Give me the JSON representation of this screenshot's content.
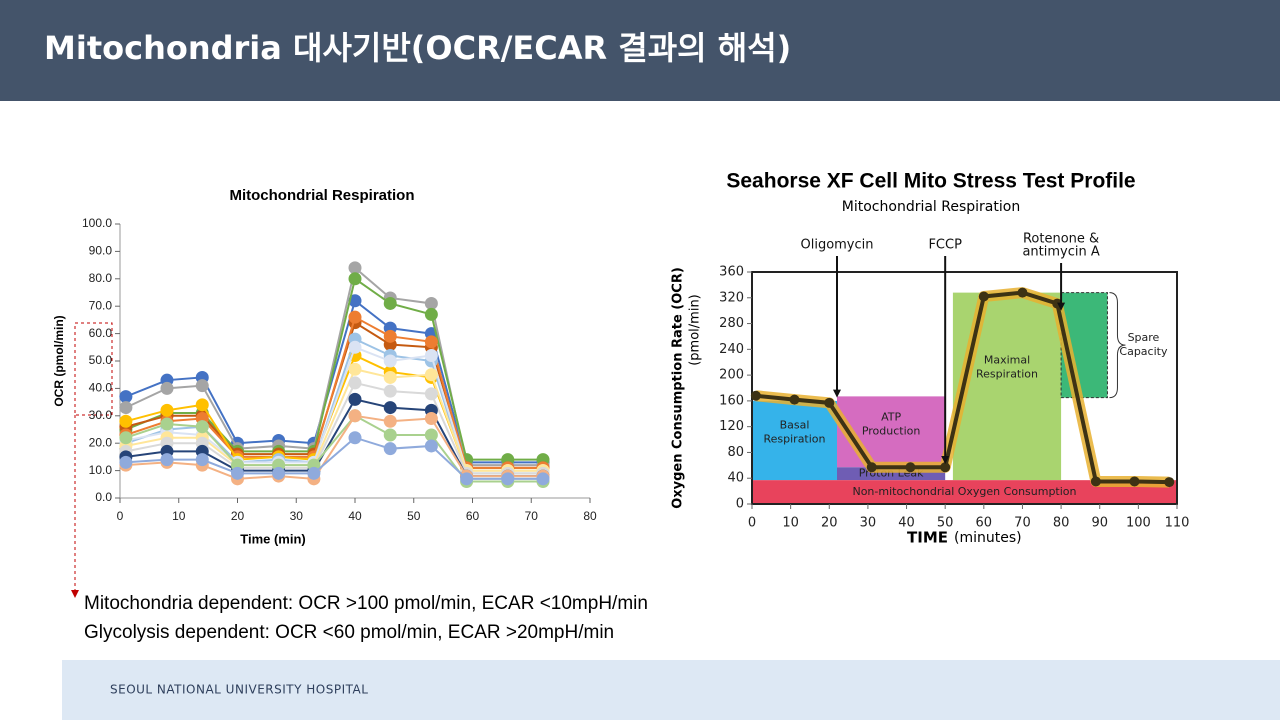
{
  "header": {
    "title": "Mitochondria 대사기반(OCR/ECAR 결과의 해석)"
  },
  "chart_data": [
    {
      "type": "line",
      "title": "Mitochondrial Respiration",
      "x_label": "Time (min)",
      "y_label": "OCR (pmol/min)",
      "x": [
        1,
        8,
        14,
        20,
        27,
        33,
        40,
        46,
        53,
        59,
        66,
        72
      ],
      "xlim": [
        0,
        80
      ],
      "xticks": [
        0,
        10,
        20,
        30,
        40,
        50,
        60,
        70,
        80
      ],
      "ylim": [
        0,
        100
      ],
      "yticks": [
        {
          "value": 0,
          "label": "0.0"
        },
        {
          "value": 10,
          "label": "10.0"
        },
        {
          "value": 20,
          "label": "20.0"
        },
        {
          "value": 30,
          "label": "30.0"
        },
        {
          "value": 40,
          "label": "40.0"
        },
        {
          "value": 50,
          "label": "50.0"
        },
        {
          "value": 60,
          "label": "60.0"
        },
        {
          "value": 70,
          "label": "70.0"
        },
        {
          "value": 80,
          "label": "80.0"
        },
        {
          "value": 90,
          "label": "90.0"
        },
        {
          "value": 100,
          "label": "100.0"
        }
      ],
      "series": [
        {
          "color": "#4472c4",
          "values": [
            37,
            43,
            44,
            20,
            21,
            20,
            72,
            62,
            60,
            13,
            13,
            13
          ]
        },
        {
          "color": "#a5a5a5",
          "values": [
            33,
            40,
            41,
            18,
            19,
            18,
            84,
            73,
            71,
            12,
            12,
            12
          ]
        },
        {
          "color": "#70ad47",
          "values": [
            25,
            31,
            31,
            17,
            17,
            17,
            80,
            71,
            67,
            14,
            14,
            14
          ]
        },
        {
          "color": "#c55a11",
          "values": [
            26,
            30,
            30,
            16,
            16,
            16,
            64,
            56,
            55,
            11,
            11,
            11
          ]
        },
        {
          "color": "#ed7d31",
          "values": [
            23,
            28,
            29,
            15,
            15,
            15,
            66,
            59,
            57,
            11,
            11,
            11
          ]
        },
        {
          "color": "#ffc000",
          "values": [
            28,
            32,
            34,
            14,
            15,
            14,
            52,
            46,
            44,
            10,
            10,
            10
          ]
        },
        {
          "color": "#9dc3e6",
          "values": [
            20,
            25,
            26,
            13,
            14,
            13,
            58,
            52,
            50,
            9,
            9,
            9
          ]
        },
        {
          "color": "#dae3f3",
          "values": [
            21,
            24,
            23,
            13,
            13,
            13,
            55,
            50,
            52,
            10,
            10,
            10
          ]
        },
        {
          "color": "#ffe699",
          "values": [
            19,
            22,
            22,
            12,
            12,
            12,
            47,
            44,
            45,
            10,
            10,
            10
          ]
        },
        {
          "color": "#d9d9d9",
          "values": [
            17,
            20,
            20,
            11,
            11,
            11,
            42,
            39,
            38,
            9,
            9,
            9
          ]
        },
        {
          "color": "#264478",
          "values": [
            15,
            17,
            17,
            10,
            10,
            10,
            36,
            33,
            32,
            8,
            8,
            8
          ]
        },
        {
          "color": "#a9d18e",
          "values": [
            22,
            27,
            26,
            12,
            12,
            12,
            30,
            23,
            23,
            6,
            6,
            6
          ]
        },
        {
          "color": "#f4b183",
          "values": [
            12,
            13,
            12,
            7,
            8,
            7,
            30,
            28,
            29,
            8,
            8,
            8
          ]
        },
        {
          "color": "#8faadc",
          "values": [
            13,
            14,
            14,
            9,
            9,
            9,
            22,
            18,
            19,
            7,
            7,
            7
          ]
        }
      ]
    },
    {
      "type": "line",
      "title": "Seahorse XF Cell Mito Stress Test Profile",
      "subtitle": "Mitochondrial Respiration",
      "x_label": "TIME",
      "x_unit": "(minutes)",
      "y_label": "Oxygen Consumption Rate (OCR)",
      "y_unit": "(pmol/min)",
      "x": [
        1,
        11,
        20,
        31,
        41,
        50,
        60,
        70,
        79,
        89,
        99,
        108
      ],
      "xlim": [
        0,
        110
      ],
      "xticks": [
        0,
        10,
        20,
        30,
        40,
        50,
        60,
        70,
        80,
        90,
        100,
        110
      ],
      "ylim": [
        0,
        360
      ],
      "yticks": [
        0,
        40,
        80,
        120,
        160,
        200,
        240,
        280,
        320,
        360
      ],
      "series": [
        {
          "color": "#3d3214",
          "glow_color": "#e8b030",
          "values": [
            168,
            162,
            157,
            57,
            57,
            57,
            322,
            328,
            311,
            35,
            35,
            34
          ]
        }
      ],
      "regions": [
        {
          "label": [
            "Basal",
            "Respiration"
          ],
          "x": [
            0,
            22
          ],
          "y": [
            37,
            160
          ],
          "color": "#35b3ea"
        },
        {
          "label": [
            "ATP",
            "Production"
          ],
          "x": [
            22,
            50
          ],
          "y": [
            57,
            167
          ],
          "color": "#d56cc0"
        },
        {
          "label": [
            "Proton Leak"
          ],
          "x": [
            22,
            50
          ],
          "y": [
            37,
            57
          ],
          "color": "#6f5db4"
        },
        {
          "label": [
            "Maximal",
            "Respiration"
          ],
          "x": [
            52,
            80
          ],
          "y": [
            37,
            328
          ],
          "color": "#a9d46f"
        },
        {
          "label": [
            "Spare",
            "Capacity"
          ],
          "x": [
            80,
            92
          ],
          "y": [
            165,
            328
          ],
          "color": "#3cb878"
        },
        {
          "label": [
            "Non-mitochondrial Oxygen Consumption"
          ],
          "x": [
            0,
            110
          ],
          "y": [
            0,
            37
          ],
          "color": "#e8435c"
        }
      ],
      "injections": [
        {
          "label": [
            "Oligomycin"
          ],
          "x": 22,
          "y": 165
        },
        {
          "label": [
            "FCCP"
          ],
          "x": 50,
          "y": 62
        },
        {
          "label": [
            "Rotenone &",
            "antimycin A"
          ],
          "x": 80,
          "y": 300
        }
      ]
    }
  ],
  "notes": [
    "Mitochondria dependent: OCR >100 pmol/min, ECAR <10mpH/min",
    "Glycolysis dependent:  OCR <60 pmol/min, ECAR >20mpH/min"
  ],
  "footer": {
    "text": "SEOUL NATIONAL UNIVERSITY HOSPITAL"
  }
}
